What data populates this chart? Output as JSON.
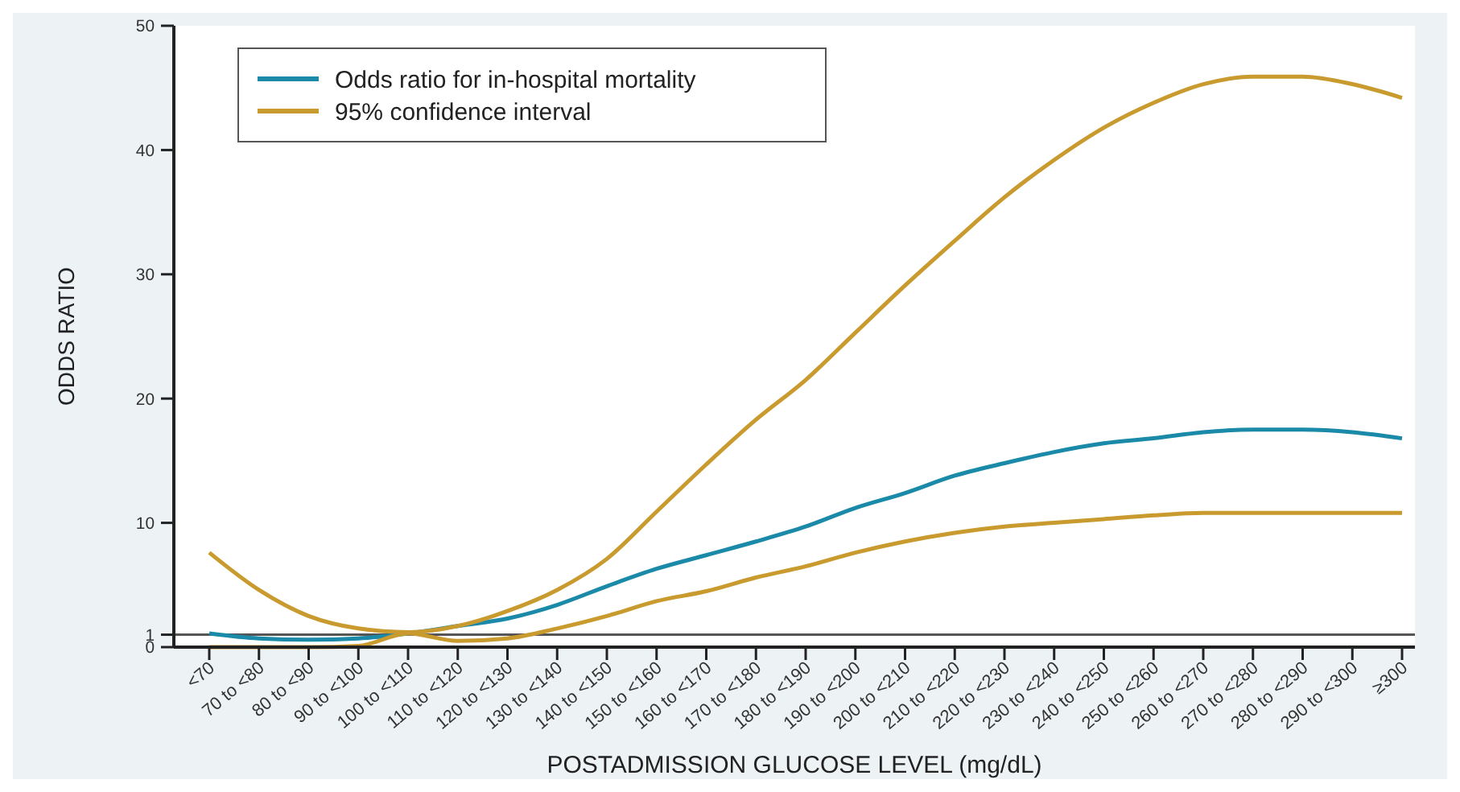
{
  "chart_data": {
    "type": "line",
    "xlabel": "POSTADMISSION GLUCOSE LEVEL (mg/dL)",
    "ylabel": "ODDS RATIO",
    "categories": [
      "<70",
      "70 to <80",
      "80 to <90",
      "90 to <100",
      "100 to <110",
      "110 to <120",
      "120 to <130",
      "130 to <140",
      "140 to <150",
      "150 to <160",
      "160 to <170",
      "170 to <180",
      "180 to <190",
      "190 to <200",
      "200 to <210",
      "210 to <220",
      "220 to <230",
      "230 to <240",
      "240 to <250",
      "250 to <260",
      "260 to <270",
      "270 to <280",
      "280 to <290",
      "290 to <300",
      "≥300"
    ],
    "series": [
      {
        "name": "Odds ratio for in-hospital mortality",
        "color": "#1a8aa8",
        "values": [
          1.1,
          0.7,
          0.6,
          0.7,
          1.1,
          1.7,
          2.3,
          3.4,
          4.9,
          6.3,
          7.4,
          8.5,
          9.7,
          11.2,
          12.4,
          13.8,
          14.8,
          15.7,
          16.4,
          16.8,
          17.3,
          17.5,
          17.5,
          17.3,
          16.8
        ]
      },
      {
        "name": "95% confidence interval",
        "color": "#c99a2e",
        "values": [
          7.6,
          4.6,
          2.5,
          1.5,
          1.2,
          1.7,
          2.9,
          4.6,
          7.1,
          10.9,
          14.7,
          18.3,
          21.5,
          25.3,
          29.1,
          32.7,
          36.2,
          39.2,
          41.8,
          43.8,
          45.3,
          45.9,
          45.9,
          45.3,
          44.2
        ]
      },
      {
        "color": "#c99a2e",
        "values": [
          0,
          0,
          0,
          0.1,
          1.1,
          0.5,
          0.7,
          1.5,
          2.5,
          3.7,
          4.5,
          5.6,
          6.5,
          7.6,
          8.5,
          9.2,
          9.7,
          10.0,
          10.3,
          10.6,
          10.8,
          10.8,
          10.8,
          10.8,
          10.8
        ]
      }
    ],
    "ylim": [
      0,
      50
    ],
    "yticks": [
      0,
      1,
      10,
      20,
      30,
      40,
      50
    ],
    "ref_lines": [
      {
        "axis": "y",
        "value": 1,
        "color": "#555555"
      }
    ],
    "legend": "top left",
    "grid": false,
    "marker": "none",
    "line_style": "solid"
  }
}
